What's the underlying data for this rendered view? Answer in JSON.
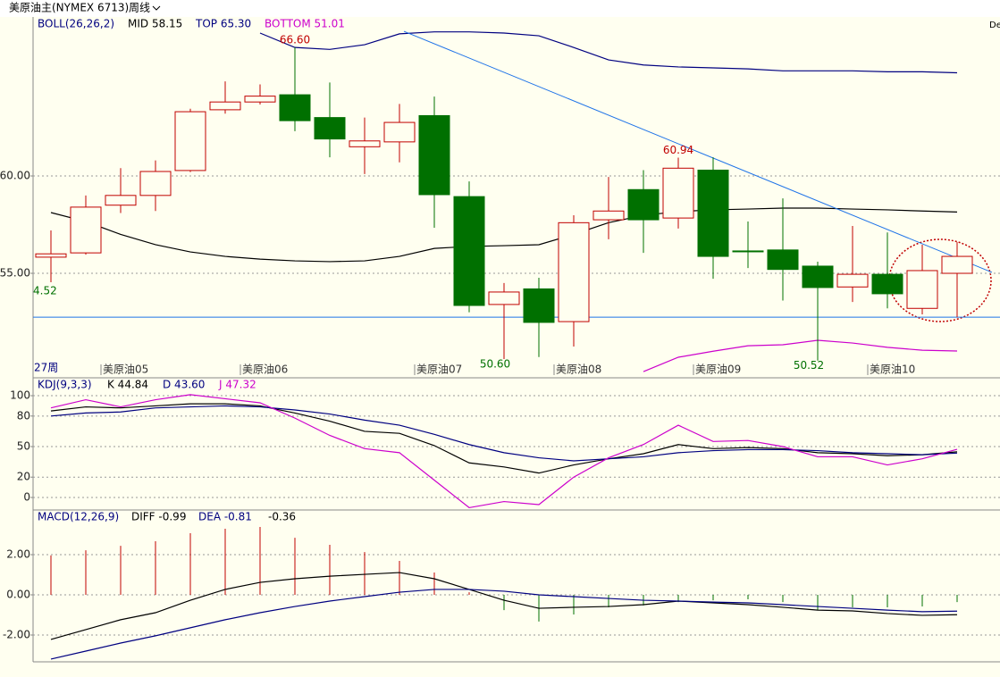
{
  "header": {
    "title": "美原油主(NYMEX 6713)",
    "period": "周线",
    "corner": "De"
  },
  "chart_data": [
    {
      "type": "candlestick",
      "indicator": "BOLL(26,26,2)",
      "period_label": "27周",
      "edge_label": "4.52",
      "categories": [
        null,
        null,
        "美原油05",
        null,
        null,
        null,
        "美原油06",
        null,
        null,
        null,
        null,
        "美原油07",
        null,
        null,
        null,
        "美原油08",
        null,
        null,
        null,
        "美原油09",
        null,
        null,
        null,
        null,
        "美原油10",
        null,
        null
      ],
      "open": [
        55.83,
        56.05,
        58.5,
        59.0,
        60.28,
        63.4,
        63.8,
        64.17,
        63.0,
        61.5,
        61.75,
        63.1,
        58.94,
        53.4,
        54.2,
        52.52,
        57.75,
        59.3,
        57.84,
        60.3,
        56.15,
        56.2,
        55.37,
        54.3,
        54.95,
        53.2,
        55.0
      ],
      "high": [
        57.2,
        59.0,
        60.4,
        60.8,
        63.45,
        64.86,
        64.7,
        66.6,
        64.8,
        63.0,
        63.7,
        64.08,
        59.72,
        54.5,
        54.77,
        57.98,
        59.95,
        60.3,
        60.94,
        60.96,
        57.66,
        58.85,
        55.6,
        57.43,
        57.1,
        56.47,
        56.6
      ],
      "low": [
        54.54,
        55.96,
        58.1,
        58.2,
        60.2,
        63.2,
        63.67,
        62.3,
        60.96,
        60.1,
        60.7,
        57.34,
        53.0,
        50.6,
        50.7,
        51.24,
        56.75,
        56.05,
        57.3,
        54.72,
        55.27,
        53.6,
        50.52,
        53.53,
        53.2,
        52.89,
        52.75
      ],
      "close": [
        56.0,
        58.4,
        59.0,
        60.23,
        63.3,
        63.8,
        64.1,
        62.84,
        61.9,
        61.8,
        62.75,
        59.04,
        53.35,
        54.04,
        52.48,
        57.6,
        58.2,
        57.75,
        60.4,
        55.87,
        56.12,
        55.2,
        54.27,
        54.95,
        53.95,
        55.14,
        55.87
      ],
      "high_labels": [
        null,
        null,
        null,
        null,
        null,
        null,
        null,
        "66.60",
        null,
        null,
        null,
        null,
        null,
        null,
        null,
        null,
        null,
        null,
        "60.94",
        null,
        null,
        null,
        null,
        null,
        null,
        null,
        null
      ],
      "low_labels": [
        null,
        null,
        null,
        null,
        null,
        null,
        null,
        null,
        null,
        null,
        null,
        null,
        null,
        "50.60",
        null,
        null,
        null,
        null,
        null,
        null,
        null,
        null,
        "50.52",
        null,
        null,
        null,
        null
      ],
      "series": [
        {
          "name": "MID 58.15",
          "color": "#000000",
          "values": [
            58.12,
            57.66,
            57.0,
            56.47,
            56.1,
            55.87,
            55.73,
            55.64,
            55.6,
            55.64,
            55.87,
            56.28,
            56.38,
            56.42,
            56.47,
            57.0,
            57.6,
            57.98,
            58.17,
            58.26,
            58.3,
            58.35,
            58.35,
            58.3,
            58.26,
            58.2,
            58.15
          ]
        },
        {
          "name": "TOP 65.30",
          "color": "#000080",
          "values": [
            null,
            null,
            null,
            null,
            null,
            null,
            67.34,
            66.6,
            66.5,
            66.74,
            67.3,
            67.4,
            67.4,
            67.34,
            67.2,
            66.6,
            65.96,
            65.7,
            65.6,
            65.55,
            65.5,
            65.4,
            65.4,
            65.4,
            65.35,
            65.35,
            65.3
          ]
        },
        {
          "name": "BOTTOM 51.01",
          "color": "#cc00cc",
          "values": [
            null,
            null,
            null,
            null,
            null,
            null,
            null,
            null,
            null,
            null,
            null,
            null,
            null,
            null,
            null,
            null,
            null,
            49.95,
            50.69,
            51.0,
            51.28,
            51.33,
            51.56,
            51.42,
            51.2,
            51.05,
            51.01
          ]
        }
      ],
      "trendline": [
        67.43,
        55.05
      ],
      "hline": 52.75,
      "line_color": "#1e73e8",
      "up_color": "#c00000",
      "down_color": "#007000",
      "ylim": [
        49.68,
        68.12
      ],
      "yticks": [
        {
          "value": 55,
          "label": "55.00"
        },
        {
          "value": 60,
          "label": "60.00"
        }
      ],
      "grid": true
    },
    {
      "type": "line",
      "indicator": "KDJ(9,3,3)",
      "series": [
        {
          "name": "K 44.84",
          "color": "#000000",
          "values": [
            85,
            89,
            88,
            90,
            92,
            92,
            90,
            83,
            75,
            65,
            63,
            51,
            34,
            30,
            24,
            32,
            38,
            43,
            52,
            48,
            49,
            48,
            44,
            43,
            41,
            42,
            44.84
          ]
        },
        {
          "name": "D 43.60",
          "color": "#000080",
          "values": [
            80,
            83,
            84,
            88,
            89,
            90,
            89,
            86,
            82,
            76,
            71,
            62,
            52,
            44,
            39,
            36,
            38,
            40,
            44,
            46,
            47,
            47,
            46,
            44,
            43,
            42,
            43.6
          ]
        },
        {
          "name": "J 47.32",
          "color": "#cc00cc",
          "values": [
            88,
            96,
            89,
            96,
            101,
            97,
            93,
            78,
            61,
            48,
            44,
            17,
            -10,
            -4,
            -7,
            20,
            39,
            52,
            71,
            55,
            56,
            50,
            40,
            40,
            32,
            38,
            47.32
          ]
        }
      ],
      "ylim": [
        -11.4,
        116.7
      ],
      "yticks": [
        0,
        20,
        50,
        80,
        100
      ],
      "grid": true
    },
    {
      "type": "macd",
      "indicator": "MACD(12,26,9)",
      "series": [
        {
          "name": "DIFF -0.99",
          "color": "#000000",
          "values": [
            -2.22,
            -1.73,
            -1.24,
            -0.89,
            -0.27,
            0.27,
            0.62,
            0.8,
            0.93,
            1.02,
            1.11,
            0.8,
            0.27,
            -0.27,
            -0.67,
            -0.62,
            -0.58,
            -0.49,
            -0.31,
            -0.4,
            -0.49,
            -0.62,
            -0.76,
            -0.8,
            -0.93,
            -1.02,
            -0.99
          ]
        },
        {
          "name": "DEA -0.81",
          "color": "#000080",
          "values": [
            -3.2,
            -2.8,
            -2.4,
            -2.04,
            -1.64,
            -1.24,
            -0.89,
            -0.58,
            -0.31,
            -0.09,
            0.13,
            0.27,
            0.27,
            0.18,
            0,
            -0.09,
            -0.18,
            -0.27,
            -0.31,
            -0.36,
            -0.4,
            -0.49,
            -0.58,
            -0.67,
            -0.76,
            -0.84,
            -0.81
          ]
        }
      ],
      "histogram": {
        "name": "-0.36",
        "values": [
          1.96,
          2.22,
          2.44,
          2.67,
          3.07,
          3.29,
          3.38,
          2.84,
          2.49,
          2.13,
          1.69,
          1.11,
          0.13,
          -0.76,
          -1.33,
          -0.98,
          -0.62,
          -0.53,
          -0.36,
          -0.27,
          -0.22,
          -0.36,
          -0.76,
          -0.62,
          -0.62,
          -0.58,
          -0.36
        ]
      },
      "up_color": "#c00000",
      "down_color": "#007000",
      "ylim": [
        -3.29,
        4.18
      ],
      "yticks": [
        {
          "value": -2,
          "label": "-2.00"
        },
        {
          "value": 0,
          "label": "0.00"
        },
        {
          "value": 2,
          "label": "2.00"
        }
      ],
      "grid": true
    }
  ]
}
